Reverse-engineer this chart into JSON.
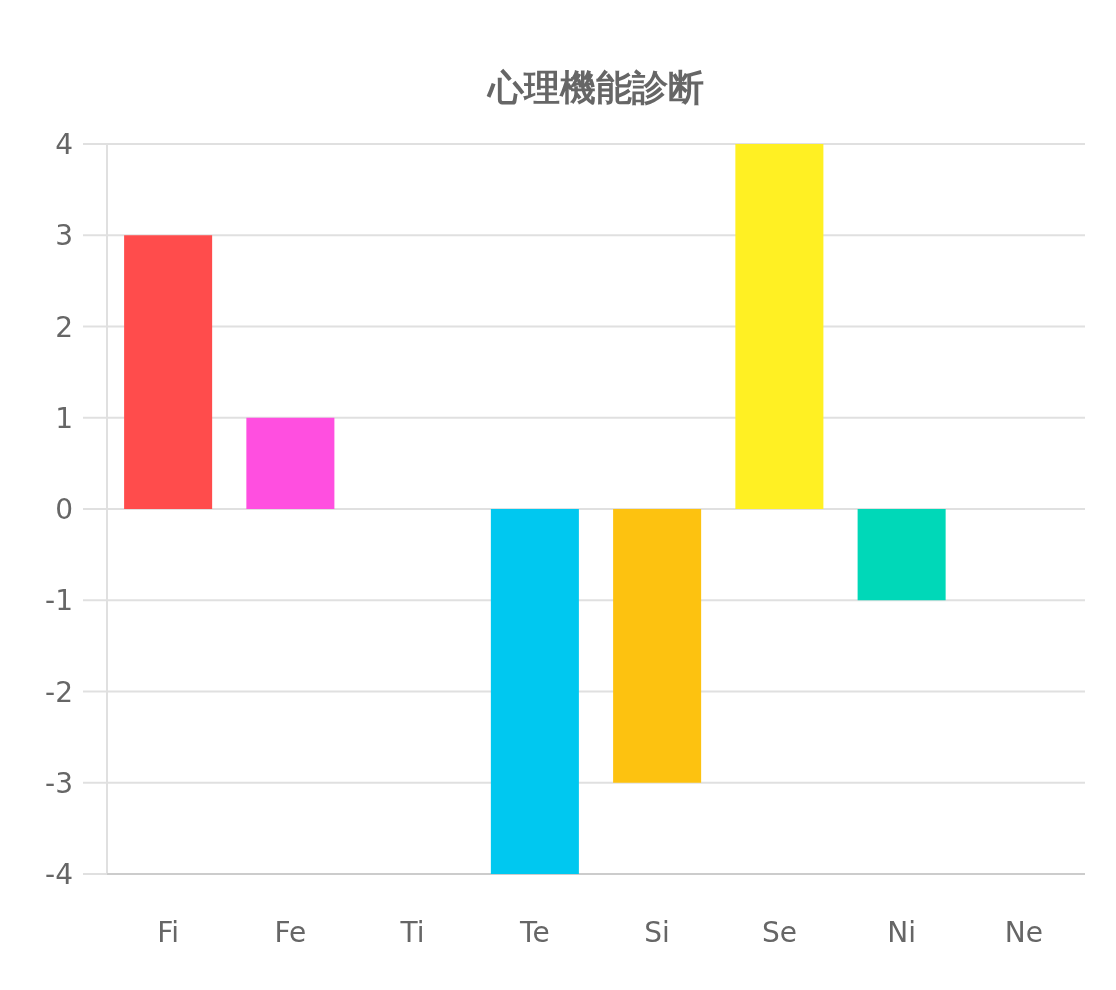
{
  "chart_data": {
    "type": "bar",
    "title": "心理機能診断",
    "categories": [
      "Fi",
      "Fe",
      "Ti",
      "Te",
      "Si",
      "Se",
      "Ni",
      "Ne"
    ],
    "values": [
      3,
      1,
      0,
      -4,
      -3,
      4,
      -1,
      0
    ],
    "colors": [
      "#ff4c4c",
      "#ff4fe0",
      "#9966ff",
      "#00c8f0",
      "#fdc210",
      "#fff023",
      "#00d8b8",
      "#ff9f40"
    ],
    "ylim": [
      -4,
      4
    ],
    "yticks": [
      -4,
      -3,
      -2,
      -1,
      0,
      1,
      2,
      3,
      4
    ],
    "grid": "y"
  }
}
